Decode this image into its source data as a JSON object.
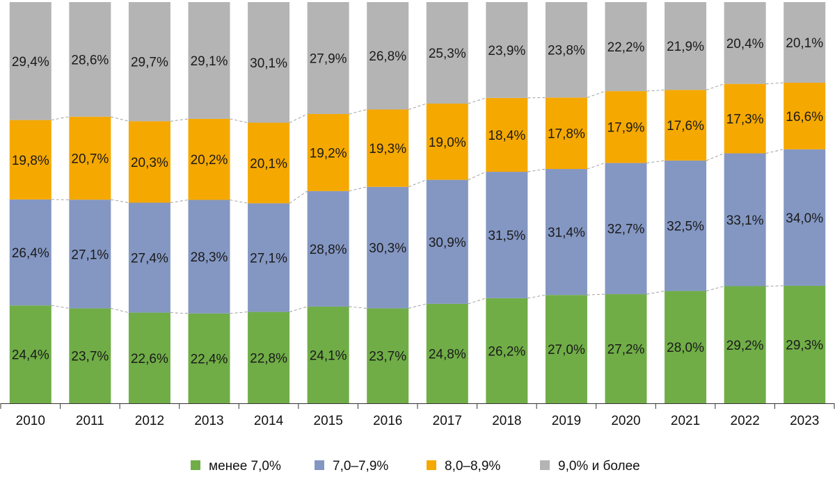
{
  "chart_data": {
    "type": "bar",
    "stacked": true,
    "percent_stacked": true,
    "categories": [
      "2010",
      "2011",
      "2012",
      "2013",
      "2014",
      "2015",
      "2016",
      "2017",
      "2018",
      "2019",
      "2020",
      "2021",
      "2022",
      "2023"
    ],
    "series": [
      {
        "name": "менее 7,0%",
        "color": "#70ad47",
        "values": [
          24.4,
          23.7,
          22.6,
          22.4,
          22.8,
          24.1,
          23.7,
          24.8,
          26.2,
          27.0,
          27.2,
          28.0,
          29.2,
          29.3
        ],
        "labels": [
          "24,4%",
          "23,7%",
          "22,6%",
          "22,4%",
          "22,8%",
          "24,1%",
          "23,7%",
          "24,8%",
          "26,2%",
          "27,0%",
          "27,2%",
          "28,0%",
          "29,2%",
          "29,3%"
        ]
      },
      {
        "name": "7,0–7,9%",
        "color": "#8497c3",
        "values": [
          26.4,
          27.1,
          27.4,
          28.3,
          27.1,
          28.8,
          30.3,
          30.9,
          31.5,
          31.4,
          32.7,
          32.5,
          33.1,
          34.0
        ],
        "labels": [
          "26,4%",
          "27,1%",
          "27,4%",
          "28,3%",
          "27,1%",
          "28,8%",
          "30,3%",
          "30,9%",
          "31,5%",
          "31,4%",
          "32,7%",
          "32,5%",
          "33,1%",
          "34,0%"
        ]
      },
      {
        "name": "8,0–8,9%",
        "color": "#f5a800",
        "values": [
          19.8,
          20.7,
          20.3,
          20.2,
          20.1,
          19.2,
          19.3,
          19.0,
          18.4,
          17.8,
          17.9,
          17.6,
          17.3,
          16.6
        ],
        "labels": [
          "19,8%",
          "20,7%",
          "20,3%",
          "20,2%",
          "20,1%",
          "19,2%",
          "19,3%",
          "19,0%",
          "18,4%",
          "17,8%",
          "17,9%",
          "17,6%",
          "17,3%",
          "16,6%"
        ]
      },
      {
        "name": "9,0% и более",
        "color": "#b4b4b4",
        "values": [
          29.4,
          28.6,
          29.7,
          29.1,
          30.1,
          27.9,
          26.8,
          25.3,
          23.9,
          23.8,
          22.2,
          21.9,
          20.4,
          20.1
        ],
        "labels": [
          "29,4%",
          "28,6%",
          "29,7%",
          "29,1%",
          "30,1%",
          "27,9%",
          "26,8%",
          "25,3%",
          "23,9%",
          "23,8%",
          "22,2%",
          "21,9%",
          "20,4%",
          "20,1%"
        ]
      }
    ],
    "title": "",
    "xlabel": "",
    "ylabel": "",
    "grid": false,
    "legend_position": "bottom",
    "connector_lines": true
  }
}
